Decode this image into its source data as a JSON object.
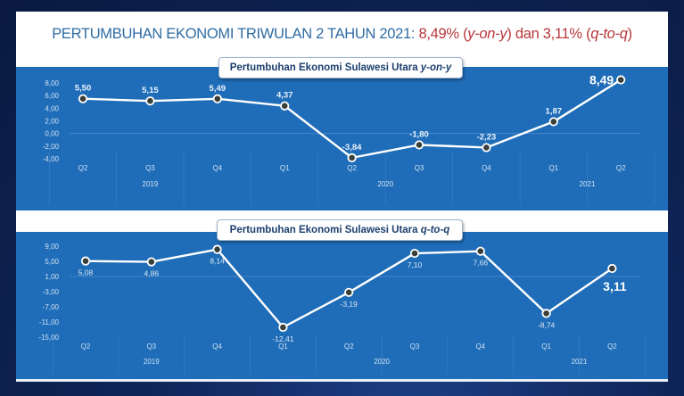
{
  "header": {
    "title_prefix": "PERTUMBUHAN EKONOMI TRIWULAN 2 TAHUN 2021: ",
    "yoy_value": "8,49%",
    "yoy_open": " (",
    "yoy_term": "y-on-y",
    "yoy_close": ")",
    "connector": " dan ",
    "qtq_value": "3,11%",
    "qtq_open": " (",
    "qtq_term": "q-to-q",
    "qtq_close": ")"
  },
  "colors": {
    "title_blue": "#2e6ca4",
    "accent_red": "#b7373a",
    "chart_bg": "#1f6db8",
    "line": "#ffffff",
    "marker_fill": "#3a3f3a"
  },
  "chart1": {
    "label_prefix": "Pertumbuhan Ekonomi Sulawesi Utara ",
    "label_term": "y-on-y"
  },
  "chart2": {
    "label_prefix": "Pertumbuhan Ekonomi Sulawesi Utara ",
    "label_term": "q-to-q"
  },
  "chart_data": [
    {
      "type": "line",
      "title": "Pertumbuhan Ekonomi Sulawesi Utara y-on-y",
      "categories": [
        "Q2 2019",
        "Q3 2019",
        "Q4 2019",
        "Q1 2020",
        "Q2 2020",
        "Q3 2020",
        "Q4 2020",
        "Q1 2021",
        "Q2 2021"
      ],
      "quarter_labels": [
        "Q2",
        "Q3",
        "Q4",
        "Q1",
        "Q2",
        "Q3",
        "Q4",
        "Q1",
        "Q2"
      ],
      "year_groups": [
        {
          "year": "2019",
          "quarters": [
            "Q2",
            "Q3",
            "Q4"
          ]
        },
        {
          "year": "2020",
          "quarters": [
            "Q1",
            "Q2",
            "Q3",
            "Q4"
          ]
        },
        {
          "year": "2021",
          "quarters": [
            "Q1",
            "Q2"
          ]
        }
      ],
      "values": [
        5.5,
        5.15,
        5.49,
        4.37,
        -3.84,
        -1.8,
        -2.23,
        1.87,
        8.49
      ],
      "value_labels": [
        "5,50",
        "5,15",
        "5,49",
        "4,37",
        "-3,84",
        "-1,80",
        "-2,23",
        "1,87",
        "8,49"
      ],
      "yticks": [
        "8,00",
        "6,00",
        "4,00",
        "2,00",
        "0,00",
        "-2,00",
        "-4,00"
      ],
      "ylim": [
        -4,
        8
      ],
      "xlabel": "",
      "ylabel": "",
      "grid": false,
      "legend": null
    },
    {
      "type": "line",
      "title": "Pertumbuhan Ekonomi Sulawesi Utara q-to-q",
      "categories": [
        "Q2 2019",
        "Q3 2019",
        "Q4 2019",
        "Q1 2020",
        "Q2 2020",
        "Q3 2020",
        "Q4 2020",
        "Q1 2021",
        "Q2 2021"
      ],
      "quarter_labels": [
        "Q2",
        "Q3",
        "Q4",
        "Q1",
        "Q2",
        "Q3",
        "Q4",
        "Q1",
        "Q2"
      ],
      "year_groups": [
        {
          "year": "2019",
          "quarters": [
            "Q2",
            "Q3",
            "Q4"
          ]
        },
        {
          "year": "2020",
          "quarters": [
            "Q1",
            "Q2",
            "Q3",
            "Q4"
          ]
        },
        {
          "year": "2021",
          "quarters": [
            "Q1",
            "Q2"
          ]
        }
      ],
      "values": [
        5.08,
        4.86,
        8.14,
        -12.41,
        -3.19,
        7.1,
        7.66,
        -8.74,
        3.11
      ],
      "value_labels": [
        "5,08",
        "4,86",
        "8,14",
        "-12,41",
        "-3,19",
        "7,10",
        "7,66",
        "-8,74",
        "3,11"
      ],
      "yticks": [
        "9,00",
        "5,00",
        "1,00",
        "-3,00",
        "-7,00",
        "-11,00",
        "-15,00"
      ],
      "ylim": [
        -15,
        9
      ],
      "xlabel": "",
      "ylabel": "",
      "grid": false,
      "legend": null
    }
  ]
}
